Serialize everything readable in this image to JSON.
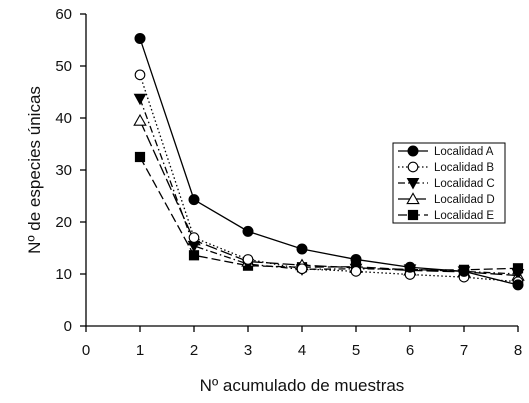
{
  "chart_data": {
    "type": "line",
    "xlabel": "Nº acumulado de muestras",
    "ylabel": "Nº de especies únicas",
    "xlim": [
      0,
      8
    ],
    "ylim": [
      0,
      60
    ],
    "x_ticks": [
      "0",
      "1",
      "2",
      "3",
      "4",
      "5",
      "6",
      "7",
      "8"
    ],
    "y_ticks": [
      "0",
      "10",
      "20",
      "30",
      "40",
      "50",
      "60"
    ],
    "grid": false,
    "legend_position": "right",
    "x": [
      1,
      2,
      3,
      4,
      5,
      6,
      7,
      8
    ],
    "series": [
      {
        "name": "Localidad A",
        "marker": "circle-filled",
        "dash": "solid",
        "values": [
          55.3,
          24.3,
          18.2,
          14.8,
          12.8,
          11.3,
          10.5,
          7.9
        ]
      },
      {
        "name": "Localidad B",
        "marker": "circle-open",
        "dash": "dotted",
        "values": [
          48.3,
          17.0,
          12.8,
          11.0,
          10.5,
          9.9,
          9.4,
          8.5
        ]
      },
      {
        "name": "Localidad C",
        "marker": "triangle-down-filled",
        "dash": "dashdot",
        "values": [
          43.7,
          15.4,
          11.9,
          10.9,
          11.0,
          10.9,
          10.5,
          10.0
        ]
      },
      {
        "name": "Localidad D",
        "marker": "triangle-up-open",
        "dash": "longdash",
        "values": [
          39.5,
          16.5,
          12.4,
          11.7,
          11.2,
          10.7,
          10.4,
          9.7
        ]
      },
      {
        "name": "Localidad E",
        "marker": "square-filled",
        "dash": "dashed",
        "values": [
          32.5,
          13.6,
          11.6,
          11.3,
          11.4,
          10.8,
          10.8,
          11.1
        ]
      }
    ]
  }
}
